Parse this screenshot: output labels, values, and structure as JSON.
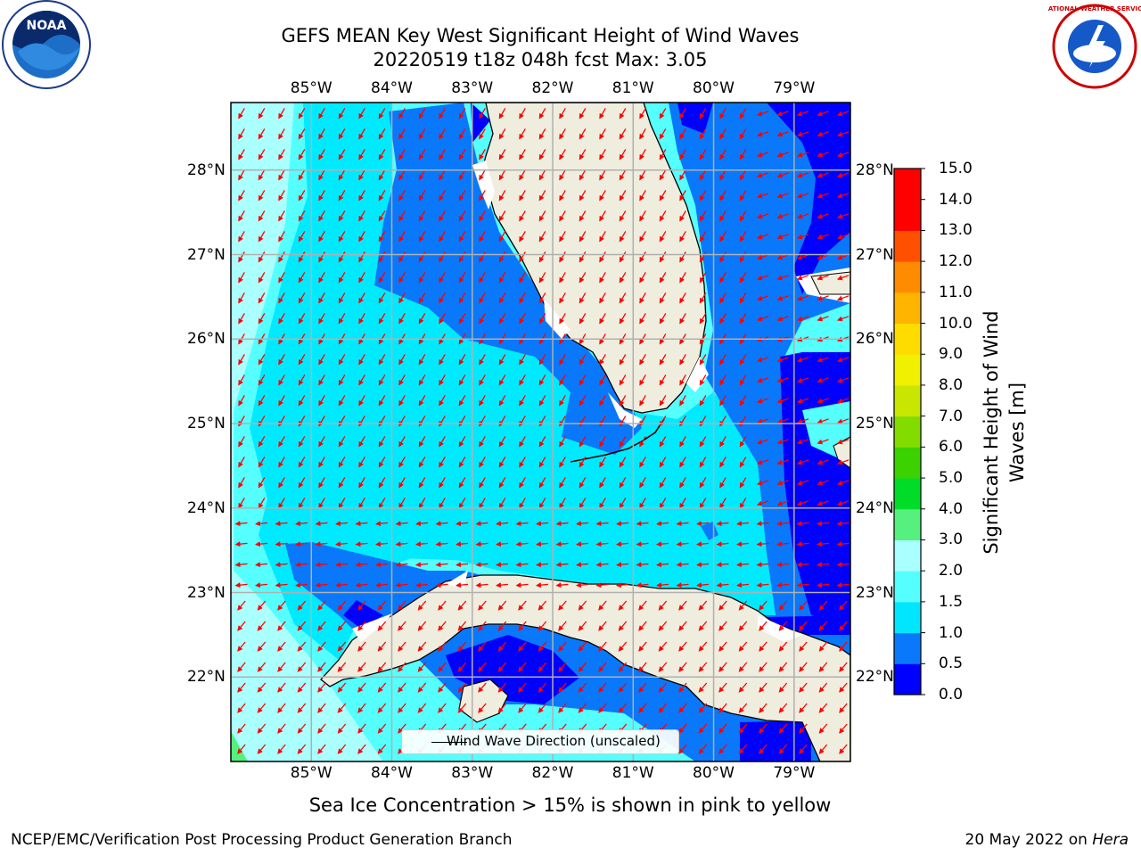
{
  "header": {
    "title_line1": "GEFS MEAN Key West Significant Height of Wind Waves",
    "title_line2": "20220519 t18z 048h fcst   Max: 3.05"
  },
  "logos": {
    "left": {
      "text": "NOAA",
      "icon": "noaa-logo-icon"
    },
    "right": {
      "text": "NATIONAL WEATHER SERVICE",
      "icon": "nws-logo-icon"
    }
  },
  "map": {
    "lon_labels": [
      "85°W",
      "84°W",
      "83°W",
      "82°W",
      "81°W",
      "80°W",
      "79°W"
    ],
    "lat_labels_left": [
      "28°N",
      "27°N",
      "26°N",
      "25°N",
      "24°N",
      "23°N",
      "22°N"
    ],
    "lat_labels_right": [
      "28°N",
      "27°N",
      "26°N",
      "25°N",
      "24°N",
      "23°N",
      "22°N"
    ],
    "extent": {
      "lon": [
        -86.0,
        -78.3
      ],
      "lat": [
        21.0,
        28.8
      ]
    },
    "arrow_color": "#ff0000",
    "land_color": "#efedde",
    "legend_label": "Wind Wave Direction (unscaled)",
    "max_value": 3.05
  },
  "colorbar": {
    "title_line1": "Significant Height of Wind",
    "title_line2": "Waves [m]",
    "tick_labels": [
      "15.0",
      "14.0",
      "13.0",
      "12.0",
      "11.0",
      "10.0",
      "9.0",
      "8.0",
      "7.0",
      "6.0",
      "5.0",
      "4.0",
      "3.0",
      "2.0",
      "1.5",
      "1.0",
      "0.5",
      "0.0"
    ],
    "colors_bottom_to_top": [
      "#0000ff",
      "#0a78fa",
      "#00e6ff",
      "#55ffff",
      "#aaffff",
      "#55f07d",
      "#00dc28",
      "#3cd200",
      "#82dc00",
      "#c8e600",
      "#f0f000",
      "#ffdc00",
      "#ffb400",
      "#ff8c00",
      "#ff5000",
      "#ff0000",
      "#ff0000"
    ]
  },
  "footer": {
    "subtitle": "Sea Ice Concentration > 15% is shown in pink to yellow",
    "left": "NCEP/EMC/Verification Post Processing Product Generation Branch",
    "right_prefix": "20 May 2022 on ",
    "right_host": "Hera"
  }
}
